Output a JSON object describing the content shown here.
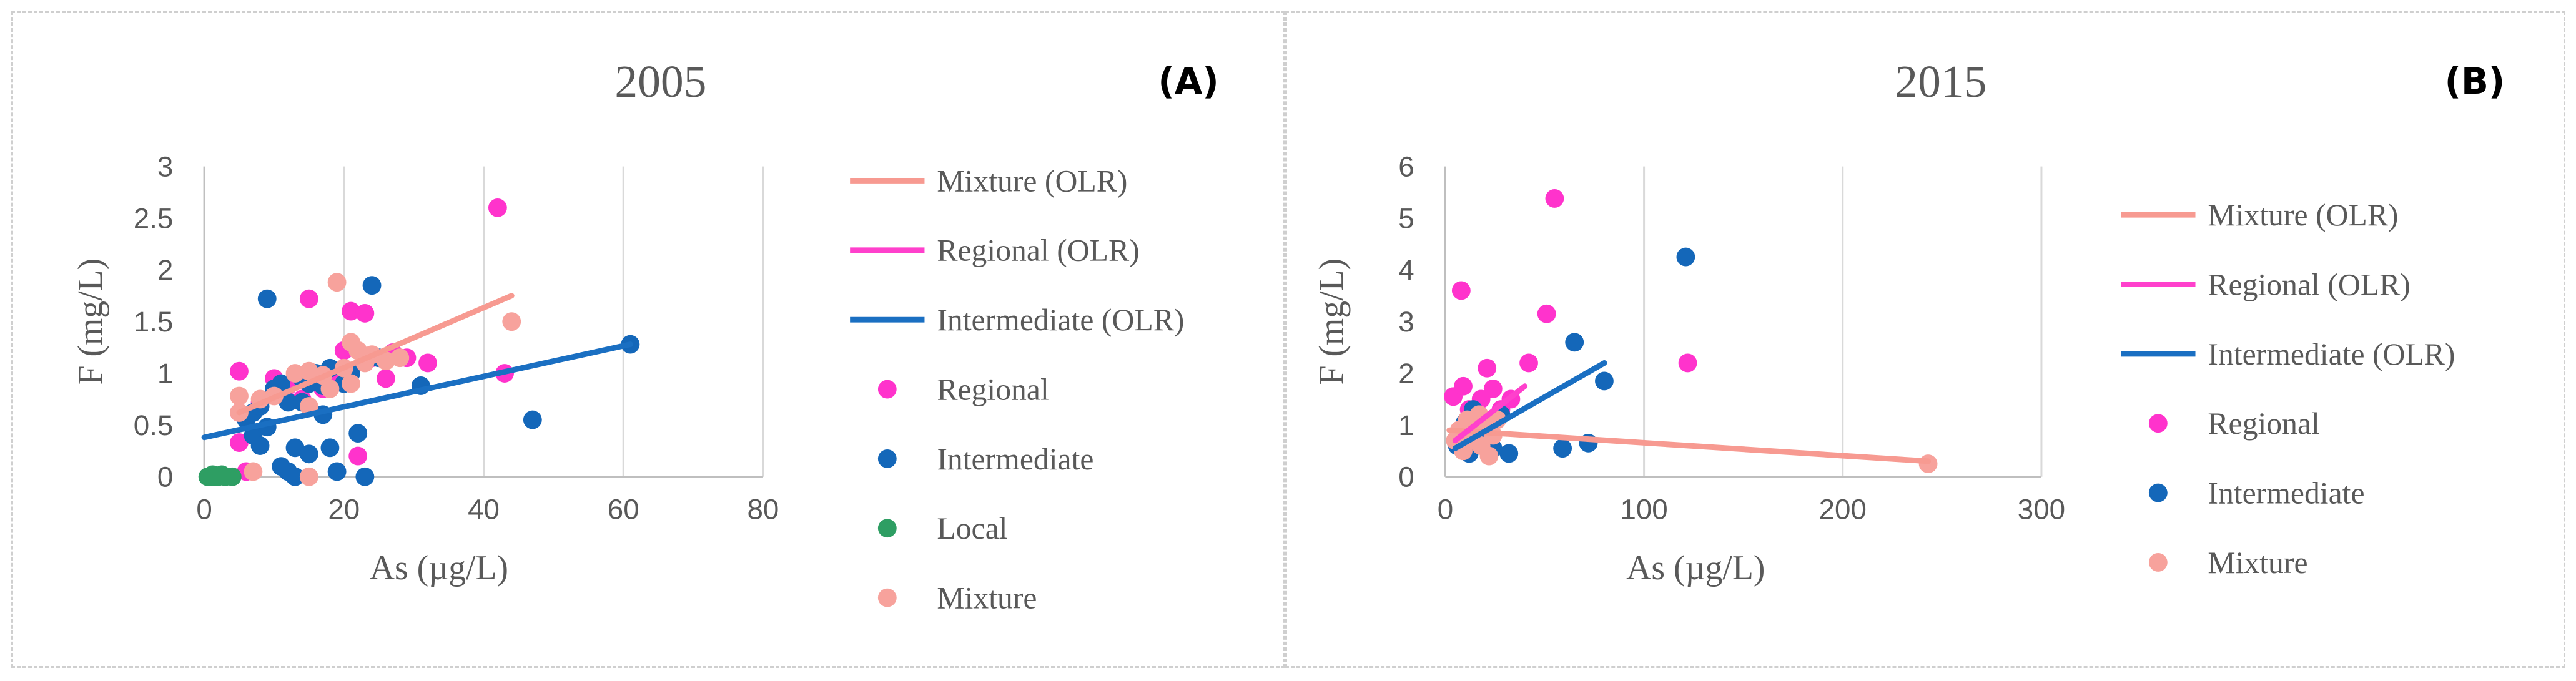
{
  "colors": {
    "regional": "#ff33cc",
    "intermediate": "#1467b9",
    "local": "#2e9e63",
    "mixture": "#f7a29c",
    "mixture_line": "#f79a91",
    "regional_line": "#ff40cc",
    "intermediate_line": "#1a6fc2"
  },
  "chart_data": [
    {
      "type": "scatter",
      "panel_label": "(A)",
      "title": "2005",
      "xlabel": "As (µg/L)",
      "ylabel": "F (mg/L)",
      "xlim": [
        0,
        80
      ],
      "ylim": [
        0,
        3
      ],
      "xticks": [
        0,
        20,
        40,
        60,
        80
      ],
      "yticks": [
        0,
        0.5,
        1,
        1.5,
        2,
        2.5,
        3
      ],
      "legend": [
        {
          "label": "Mixture (OLR)",
          "kind": "line",
          "series": "mixture_line"
        },
        {
          "label": "Regional (OLR)",
          "kind": "line",
          "series": "regional_line"
        },
        {
          "label": "Intermediate (OLR)",
          "kind": "line",
          "series": "intermediate_line"
        },
        {
          "label": "Regional",
          "kind": "marker",
          "series": "regional"
        },
        {
          "label": "Intermediate",
          "kind": "marker",
          "series": "intermediate"
        },
        {
          "label": "Local",
          "kind": "marker",
          "series": "local"
        },
        {
          "label": "Mixture",
          "kind": "marker",
          "series": "mixture"
        }
      ],
      "lines": [
        {
          "name": "Mixture (OLR)",
          "series": "mixture_line",
          "x": [
            5,
            44
          ],
          "y": [
            0.62,
            1.75
          ]
        },
        {
          "name": "Intermediate (OLR)",
          "series": "intermediate_line",
          "x": [
            0,
            61
          ],
          "y": [
            0.38,
            1.28
          ]
        }
      ],
      "series": [
        {
          "name": "Regional",
          "series": "regional",
          "points": [
            [
              5,
              1.02
            ],
            [
              5,
              0.62
            ],
            [
              5,
              0.33
            ],
            [
              6,
              0.05
            ],
            [
              8,
              0.72
            ],
            [
              10,
              0.95
            ],
            [
              12,
              0.88
            ],
            [
              14,
              0.75
            ],
            [
              15,
              1.72
            ],
            [
              15,
              0.98
            ],
            [
              17,
              0.85
            ],
            [
              19,
              0.95
            ],
            [
              20,
              1.22
            ],
            [
              21,
              1.6
            ],
            [
              22,
              0.2
            ],
            [
              23,
              1.58
            ],
            [
              24,
              1.15
            ],
            [
              26,
              0.95
            ],
            [
              27,
              1.2
            ],
            [
              29,
              1.15
            ],
            [
              32,
              1.1
            ],
            [
              42,
              2.6
            ],
            [
              43,
              1.0
            ]
          ]
        },
        {
          "name": "Intermediate",
          "series": "intermediate",
          "points": [
            [
              6,
              0.55
            ],
            [
              7,
              0.4
            ],
            [
              7,
              0.62
            ],
            [
              8,
              0.3
            ],
            [
              8,
              0.68
            ],
            [
              9,
              1.72
            ],
            [
              9,
              0.48
            ],
            [
              10,
              0.85
            ],
            [
              11,
              0.9
            ],
            [
              11,
              0.1
            ],
            [
              12,
              0.72
            ],
            [
              12,
              0.05
            ],
            [
              13,
              0.0
            ],
            [
              13,
              0.28
            ],
            [
              14,
              0.95
            ],
            [
              14,
              0.72
            ],
            [
              15,
              0.22
            ],
            [
              15,
              0.9
            ],
            [
              16,
              1.0
            ],
            [
              17,
              0.6
            ],
            [
              17,
              0.88
            ],
            [
              18,
              0.28
            ],
            [
              18,
              1.05
            ],
            [
              19,
              0.05
            ],
            [
              20,
              0.9
            ],
            [
              21,
              1.0
            ],
            [
              22,
              0.42
            ],
            [
              23,
              0.0
            ],
            [
              24,
              1.85
            ],
            [
              25,
              1.15
            ],
            [
              31,
              0.88
            ],
            [
              47,
              0.55
            ],
            [
              61,
              1.28
            ]
          ]
        },
        {
          "name": "Local",
          "series": "local",
          "points": [
            [
              0.5,
              0
            ],
            [
              1,
              0
            ],
            [
              1.5,
              0
            ],
            [
              2,
              0
            ],
            [
              3,
              0
            ],
            [
              4,
              0
            ],
            [
              1.2,
              0.02
            ],
            [
              2.5,
              0.02
            ]
          ]
        },
        {
          "name": "Mixture",
          "series": "mixture",
          "points": [
            [
              5,
              0.78
            ],
            [
              5,
              0.62
            ],
            [
              7,
              0.05
            ],
            [
              8,
              0.75
            ],
            [
              10,
              0.78
            ],
            [
              13,
              1.0
            ],
            [
              15,
              0.68
            ],
            [
              15,
              1.02
            ],
            [
              15,
              0.0
            ],
            [
              17,
              0.98
            ],
            [
              18,
              0.85
            ],
            [
              19,
              1.88
            ],
            [
              20,
              1.05
            ],
            [
              21,
              1.3
            ],
            [
              21,
              0.9
            ],
            [
              22,
              1.22
            ],
            [
              23,
              1.1
            ],
            [
              24,
              1.18
            ],
            [
              26,
              1.12
            ],
            [
              28,
              1.15
            ],
            [
              44,
              1.5
            ]
          ]
        }
      ]
    },
    {
      "type": "scatter",
      "panel_label": "(B)",
      "title": "2015",
      "xlabel": "As (µg/L)",
      "ylabel": "F (mg/L)",
      "xlim": [
        0,
        300
      ],
      "ylim": [
        0,
        6
      ],
      "xticks": [
        0,
        100,
        200,
        300
      ],
      "yticks": [
        0,
        1,
        2,
        3,
        4,
        5,
        6
      ],
      "legend": [
        {
          "label": "Mixture (OLR)",
          "kind": "line",
          "series": "mixture_line"
        },
        {
          "label": "Regional (OLR)",
          "kind": "line",
          "series": "regional_line"
        },
        {
          "label": "Intermediate (OLR)",
          "kind": "line",
          "series": "intermediate_line"
        },
        {
          "label": "Regional",
          "kind": "marker",
          "series": "regional"
        },
        {
          "label": "Intermediate",
          "kind": "marker",
          "series": "intermediate"
        },
        {
          "label": "Mixture",
          "kind": "marker",
          "series": "mixture"
        }
      ],
      "lines": [
        {
          "name": "Mixture (OLR)",
          "series": "mixture_line",
          "x": [
            2,
            243
          ],
          "y": [
            0.9,
            0.3
          ]
        },
        {
          "name": "Regional (OLR)",
          "series": "regional_line",
          "x": [
            5,
            40
          ],
          "y": [
            0.7,
            1.75
          ]
        },
        {
          "name": "Intermediate (OLR)",
          "series": "intermediate_line",
          "x": [
            5,
            80
          ],
          "y": [
            0.55,
            2.2
          ]
        }
      ],
      "series": [
        {
          "name": "Regional",
          "series": "regional",
          "points": [
            [
              4,
              1.55
            ],
            [
              8,
              3.6
            ],
            [
              9,
              1.75
            ],
            [
              12,
              1.3
            ],
            [
              14,
              1.1
            ],
            [
              18,
              1.5
            ],
            [
              21,
              2.1
            ],
            [
              24,
              1.7
            ],
            [
              28,
              1.3
            ],
            [
              33,
              1.5
            ],
            [
              42,
              2.2
            ],
            [
              51,
              3.15
            ],
            [
              55,
              5.38
            ],
            [
              122,
              2.2
            ]
          ]
        },
        {
          "name": "Intermediate",
          "series": "intermediate",
          "points": [
            [
              6,
              0.6
            ],
            [
              9,
              0.85
            ],
            [
              10,
              1.05
            ],
            [
              12,
              0.45
            ],
            [
              14,
              1.3
            ],
            [
              16,
              0.75
            ],
            [
              18,
              0.9
            ],
            [
              20,
              1.1
            ],
            [
              24,
              0.55
            ],
            [
              28,
              1.2
            ],
            [
              32,
              0.45
            ],
            [
              59,
              0.55
            ],
            [
              65,
              2.6
            ],
            [
              72,
              0.65
            ],
            [
              80,
              1.85
            ],
            [
              121,
              4.25
            ]
          ]
        },
        {
          "name": "Mixture",
          "series": "mixture",
          "points": [
            [
              5,
              0.7
            ],
            [
              7,
              0.9
            ],
            [
              9,
              0.5
            ],
            [
              11,
              1.1
            ],
            [
              13,
              0.7
            ],
            [
              15,
              0.9
            ],
            [
              17,
              1.2
            ],
            [
              18,
              0.6
            ],
            [
              20,
              1.0
            ],
            [
              22,
              0.4
            ],
            [
              24,
              0.8
            ],
            [
              26,
              1.1
            ],
            [
              243,
              0.25
            ]
          ]
        }
      ]
    }
  ]
}
